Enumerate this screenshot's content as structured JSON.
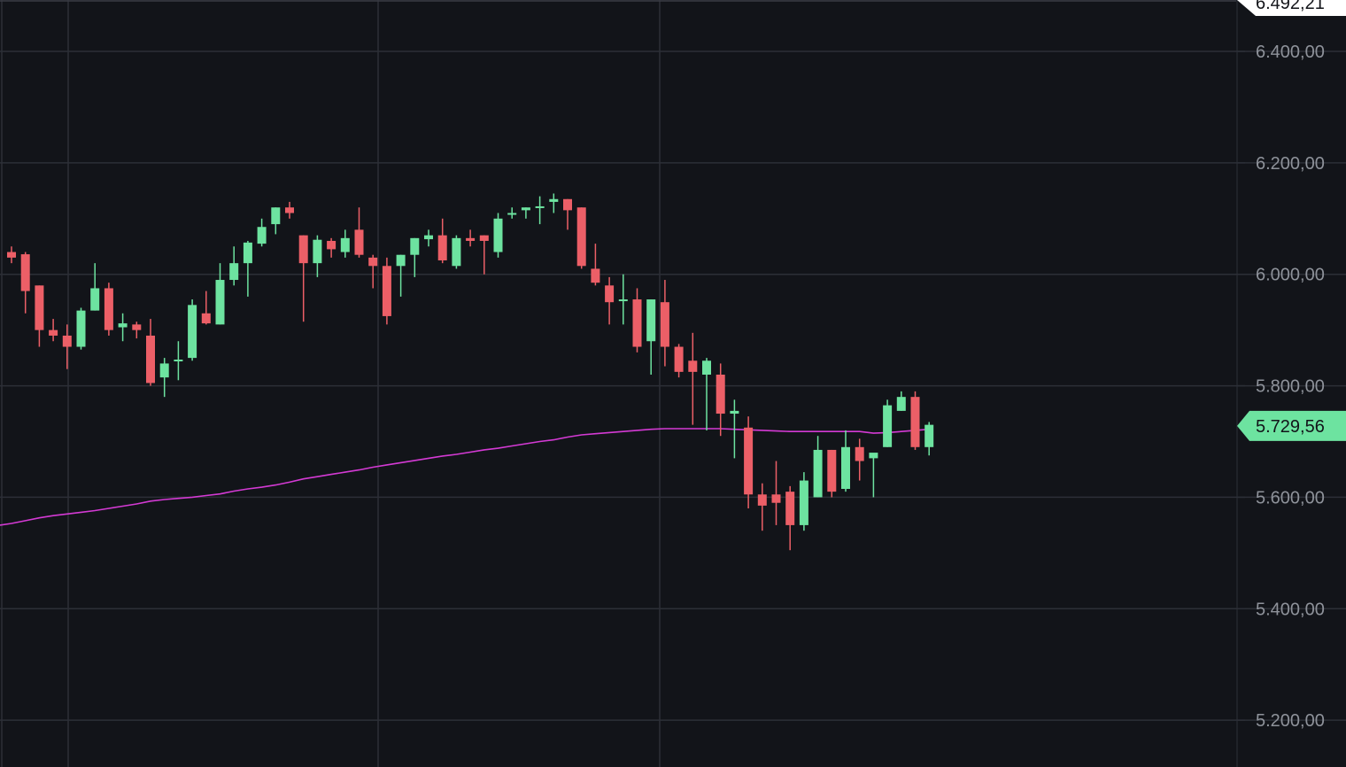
{
  "chart_data": {
    "type": "candlestick",
    "yaxis": {
      "ticks": [
        "5.200,00",
        "5.400,00",
        "5.600,00",
        "5.800,00",
        "6.000,00",
        "6.200,00",
        "6.400,00"
      ],
      "tick_values": [
        5200,
        5400,
        5600,
        5800,
        6000,
        6200,
        6400
      ],
      "ylim": [
        5116,
        6492.21
      ]
    },
    "top_price_label": "6.492,21",
    "current_price_label": "5.729,56",
    "current_price": 5729.56,
    "grid": true,
    "series": [
      {
        "type": "ohlc",
        "candles": [
          [
            6040,
            6030,
            6050,
            6020
          ],
          [
            6036,
            5970,
            6040,
            5930
          ],
          [
            5980,
            5900,
            5980,
            5870
          ],
          [
            5900,
            5890,
            5920,
            5880
          ],
          [
            5890,
            5870,
            5910,
            5830
          ],
          [
            5870,
            5935,
            5940,
            5865
          ],
          [
            5935,
            5975,
            6020,
            5935
          ],
          [
            5975,
            5900,
            5985,
            5890
          ],
          [
            5905,
            5912,
            5930,
            5880
          ],
          [
            5910,
            5900,
            5915,
            5885
          ],
          [
            5890,
            5805,
            5920,
            5800
          ],
          [
            5815,
            5840,
            5850,
            5780
          ],
          [
            5845,
            5847,
            5880,
            5810
          ],
          [
            5850,
            5945,
            5955,
            5845
          ],
          [
            5930,
            5912,
            5970,
            5910
          ],
          [
            5910,
            5990,
            6020,
            5910
          ],
          [
            5990,
            6020,
            6050,
            5980
          ],
          [
            6020,
            6057,
            6060,
            5960
          ],
          [
            6055,
            6085,
            6100,
            6050
          ],
          [
            6090,
            6120,
            6120,
            6072
          ],
          [
            6120,
            6110,
            6130,
            6100
          ],
          [
            6070,
            6020,
            6070,
            5915
          ],
          [
            6020,
            6062,
            6070,
            5995
          ],
          [
            6060,
            6045,
            6065,
            6030
          ],
          [
            6040,
            6065,
            6080,
            6030
          ],
          [
            6080,
            6035,
            6120,
            6030
          ],
          [
            6030,
            6015,
            6035,
            5975
          ],
          [
            6015,
            5925,
            6030,
            5910
          ],
          [
            6015,
            6035,
            6035,
            5960
          ],
          [
            6035,
            6065,
            6065,
            5995
          ],
          [
            6063,
            6070,
            6080,
            6050
          ],
          [
            6070,
            6025,
            6100,
            6020
          ],
          [
            6015,
            6065,
            6070,
            6010
          ],
          [
            6065,
            6060,
            6080,
            6050
          ],
          [
            6070,
            6060,
            6070,
            6000
          ],
          [
            6040,
            6100,
            6110,
            6030
          ],
          [
            6110,
            6110,
            6120,
            6100
          ],
          [
            6115,
            6120,
            6120,
            6100
          ],
          [
            6120,
            6122,
            6140,
            6090
          ],
          [
            6130,
            6135,
            6145,
            6110
          ],
          [
            6135,
            6115,
            6135,
            6080
          ],
          [
            6120,
            6015,
            6120,
            6010
          ],
          [
            6010,
            5985,
            6055,
            5980
          ],
          [
            5980,
            5950,
            5995,
            5910
          ],
          [
            5955,
            5955,
            6000,
            5910
          ],
          [
            5955,
            5870,
            5975,
            5860
          ],
          [
            5880,
            5955,
            5955,
            5820
          ],
          [
            5950,
            5870,
            5990,
            5835
          ],
          [
            5870,
            5825,
            5875,
            5815
          ],
          [
            5845,
            5825,
            5895,
            5730
          ],
          [
            5820,
            5845,
            5850,
            5720
          ],
          [
            5820,
            5750,
            5840,
            5710
          ],
          [
            5750,
            5755,
            5775,
            5670
          ],
          [
            5725,
            5605,
            5745,
            5580
          ],
          [
            5605,
            5585,
            5625,
            5540
          ],
          [
            5605,
            5590,
            5665,
            5550
          ],
          [
            5610,
            5550,
            5620,
            5505
          ],
          [
            5550,
            5630,
            5645,
            5540
          ],
          [
            5600,
            5685,
            5710,
            5600
          ],
          [
            5685,
            5610,
            5685,
            5600
          ],
          [
            5615,
            5690,
            5720,
            5610
          ],
          [
            5690,
            5665,
            5705,
            5630
          ],
          [
            5670,
            5680,
            5675,
            5600
          ],
          [
            5690,
            5765,
            5775,
            5690
          ],
          [
            5755,
            5780,
            5790,
            5755
          ],
          [
            5780,
            5690,
            5790,
            5685
          ],
          [
            5690,
            5730,
            5735,
            5675
          ]
        ]
      },
      {
        "type": "line",
        "color": "#d43ad4",
        "values": [
          5553,
          5558,
          5563,
          5567,
          5570,
          5573,
          5576,
          5580,
          5584,
          5588,
          5593,
          5596,
          5598,
          5600,
          5603,
          5606,
          5611,
          5615,
          5618,
          5622,
          5627,
          5633,
          5637,
          5641,
          5645,
          5649,
          5654,
          5658,
          5662,
          5666,
          5670,
          5674,
          5677,
          5681,
          5685,
          5688,
          5692,
          5696,
          5700,
          5703,
          5708,
          5712,
          5714,
          5716,
          5718,
          5720,
          5722,
          5723,
          5723,
          5723,
          5723,
          5723,
          5722,
          5721,
          5720,
          5719,
          5718,
          5718,
          5718,
          5718,
          5718,
          5718,
          5715,
          5716,
          5718,
          5720,
          5722
        ]
      }
    ],
    "colors": {
      "up": "#6de3a0",
      "down": "#ec5f67",
      "background": "#121419",
      "grid": "#2c2f37",
      "axis_text": "#8e929a",
      "current_price_badge": "#6de3a0",
      "top_badge": "#ffffff"
    }
  }
}
